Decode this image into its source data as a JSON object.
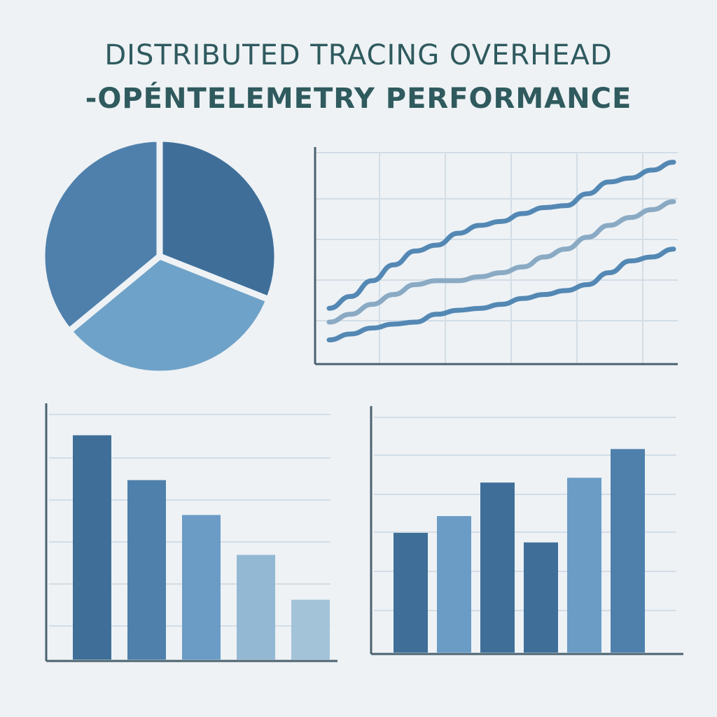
{
  "title": {
    "line1": "DISTRIBUTED TRACING OVERHEAD",
    "line2": "-OPÉNTELEMETRY PERFORMANCE"
  },
  "colors": {
    "background": "#eef2f5",
    "title": "#2f5a5e",
    "axis": "#4a6270",
    "grid": "#d3dde6",
    "dark": "#3f6f99",
    "mid": "#5488b4",
    "light": "#6fa2c8",
    "pale": "#9dbfd6"
  },
  "chart_data": [
    {
      "type": "pie",
      "values": [
        31,
        33,
        36
      ],
      "colors": [
        "#3f6f99",
        "#6fa2c8",
        "#4f80ac"
      ]
    },
    {
      "type": "line",
      "grid": true,
      "x": [
        0,
        1,
        2,
        3,
        4,
        5,
        6,
        7,
        8,
        9,
        10,
        11,
        12,
        13,
        14,
        15,
        16
      ],
      "ylim": [
        0,
        100
      ],
      "series": [
        {
          "color": "#5488b4",
          "values": [
            24,
            30,
            38,
            46,
            53,
            56,
            62,
            66,
            68,
            72,
            75,
            76,
            82,
            88,
            90,
            94,
            98
          ]
        },
        {
          "color": "#8aaac4",
          "values": [
            17,
            21,
            26,
            31,
            36,
            38,
            38,
            40,
            42,
            45,
            50,
            54,
            60,
            66,
            70,
            74,
            78
          ]
        },
        {
          "color": "#5488b4",
          "values": [
            8,
            11,
            14,
            16,
            17,
            21,
            23,
            24,
            26,
            29,
            31,
            33,
            36,
            42,
            48,
            50,
            54
          ]
        }
      ]
    },
    {
      "type": "bar",
      "grid": true,
      "ylim": [
        0,
        100
      ],
      "values": [
        90,
        72,
        58,
        42,
        24
      ],
      "colors": [
        "#3f6f99",
        "#4f80ac",
        "#6a9cc6",
        "#93b8d3",
        "#a3c3d9"
      ]
    },
    {
      "type": "bar",
      "grid": true,
      "ylim": [
        0,
        100
      ],
      "values": [
        50,
        57,
        71,
        46,
        73,
        85
      ],
      "colors": [
        "#3f6f99",
        "#6a9cc6",
        "#3f6f99",
        "#3f6f99",
        "#6a9cc6",
        "#4f80ac"
      ]
    }
  ]
}
